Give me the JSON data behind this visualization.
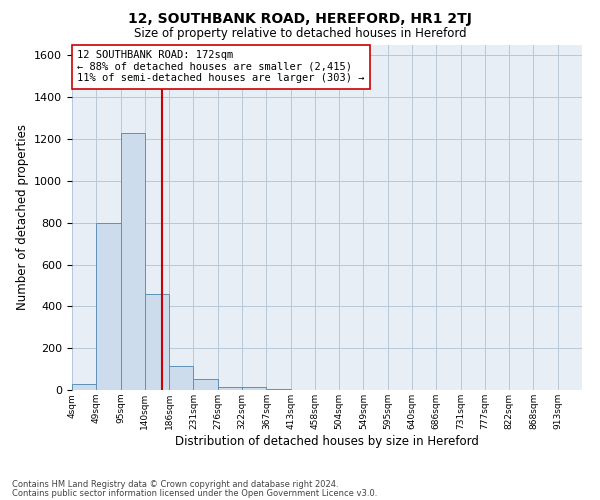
{
  "title": "12, SOUTHBANK ROAD, HEREFORD, HR1 2TJ",
  "subtitle": "Size of property relative to detached houses in Hereford",
  "xlabel": "Distribution of detached houses by size in Hereford",
  "ylabel": "Number of detached properties",
  "bin_labels": [
    "4sqm",
    "49sqm",
    "95sqm",
    "140sqm",
    "186sqm",
    "231sqm",
    "276sqm",
    "322sqm",
    "367sqm",
    "413sqm",
    "458sqm",
    "504sqm",
    "549sqm",
    "595sqm",
    "640sqm",
    "686sqm",
    "731sqm",
    "777sqm",
    "822sqm",
    "868sqm",
    "913sqm"
  ],
  "bar_values": [
    30,
    800,
    1230,
    460,
    115,
    55,
    15,
    12,
    5,
    0,
    0,
    0,
    0,
    0,
    0,
    0,
    0,
    0,
    0,
    0,
    0
  ],
  "bar_color": "#ccdcec",
  "bar_edge_color": "#6090b8",
  "grid_color": "#b8c8d8",
  "background_color": "#e8eef6",
  "vline_color": "#cc0000",
  "annotation_title": "12 SOUTHBANK ROAD: 172sqm",
  "annotation_line1": "← 88% of detached houses are smaller (2,415)",
  "annotation_line2": "11% of semi-detached houses are larger (303) →",
  "annotation_box_color": "#ffffff",
  "annotation_box_edge": "#cc0000",
  "ylim": [
    0,
    1650
  ],
  "yticks": [
    0,
    200,
    400,
    600,
    800,
    1000,
    1200,
    1400,
    1600
  ],
  "footer1": "Contains HM Land Registry data © Crown copyright and database right 2024.",
  "footer2": "Contains public sector information licensed under the Open Government Licence v3.0.",
  "bin_width": 45,
  "vline_bin": 3.84
}
